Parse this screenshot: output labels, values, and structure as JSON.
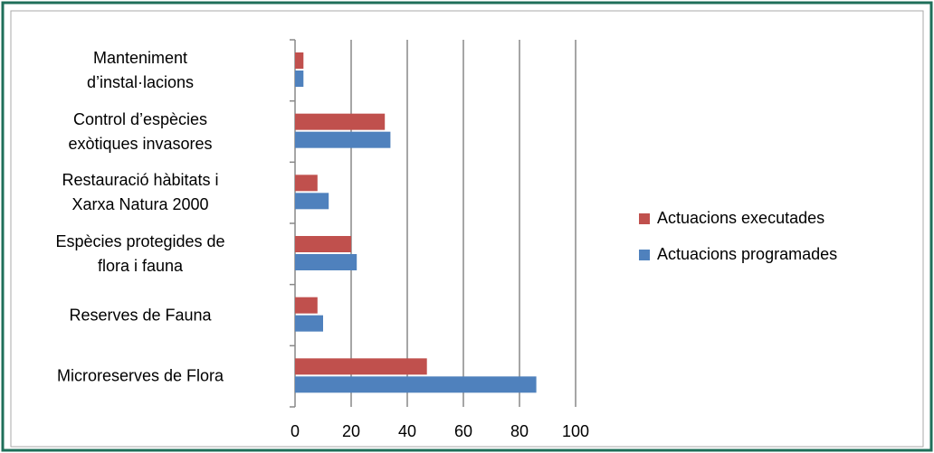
{
  "chart_data": {
    "type": "hbar",
    "categories": [
      "Manteniment\nd’instal·lacions",
      "Control d’espècies\nexòtiques invasores",
      "Restauració hàbitats i\nXarxa Natura 2000",
      "Espècies protegides de\nflora i fauna",
      "Reserves de Fauna",
      "Microreserves de Flora"
    ],
    "series": [
      {
        "name": "Actuacions executades",
        "color": "#c0504d",
        "values": [
          3,
          32,
          8,
          20,
          8,
          47
        ]
      },
      {
        "name": "Actuacions programades",
        "color": "#4f81bd",
        "values": [
          3,
          34,
          12,
          22,
          10,
          86
        ]
      }
    ],
    "xlim": [
      0,
      100
    ],
    "xticks": [
      0,
      20,
      40,
      60,
      80,
      100
    ],
    "grid": true,
    "legend": "right"
  }
}
